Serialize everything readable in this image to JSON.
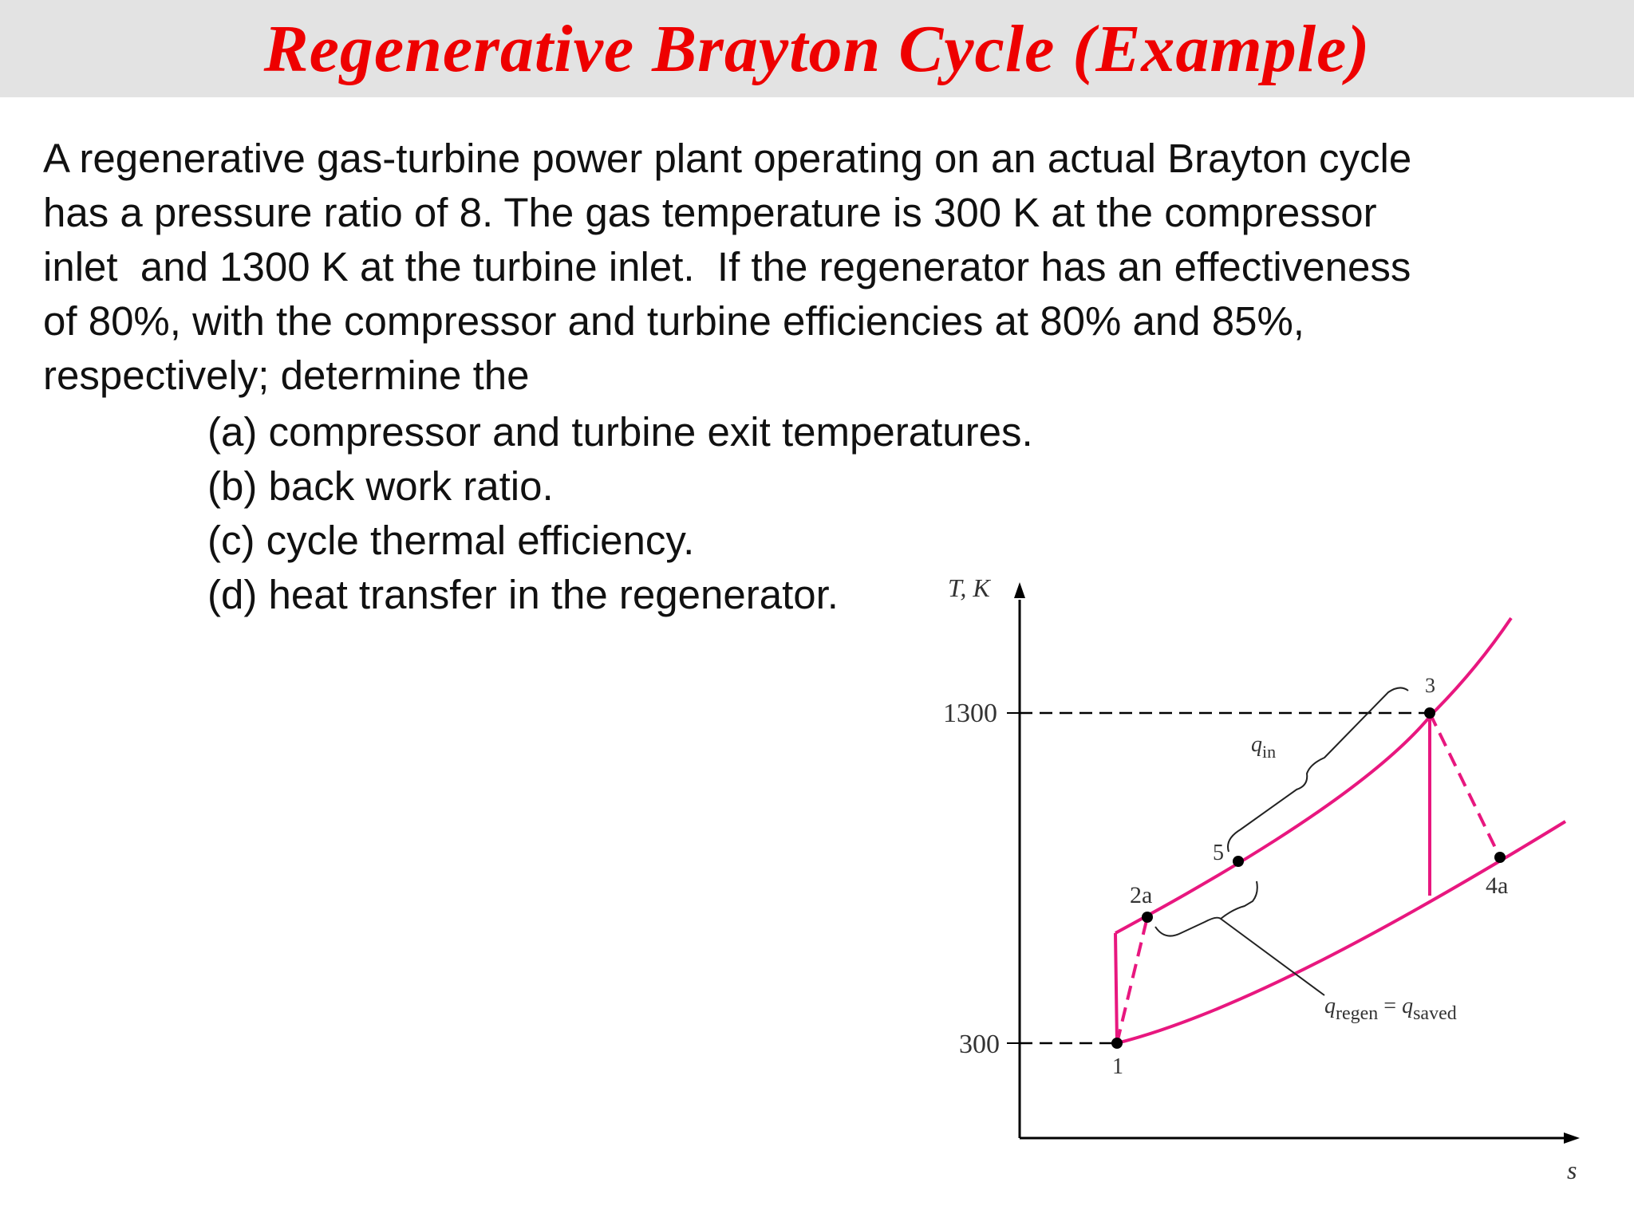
{
  "title": "Regenerative Brayton Cycle (Example)",
  "problem_lines": [
    "A regenerative gas-turbine power plant operating on an actual Brayton cycle",
    "has a pressure ratio of 8. The gas temperature is 300 K at the compressor",
    "inlet  and 1300 K at the turbine inlet.  If the regenerator has an effectiveness",
    "of 80%, with the compressor and turbine efficiencies at 80% and 85%,",
    "respectively; determine the"
  ],
  "questions": [
    "(a) compressor and turbine exit temperatures.",
    "(b) back work ratio.",
    "(c) cycle thermal efficiency.",
    "(d) heat transfer in the regenerator."
  ],
  "diagram": {
    "y_axis_label": "T, K",
    "x_axis_label": "s",
    "y_ticks": [
      "1300",
      "300"
    ],
    "state_labels": {
      "s1": "1",
      "s2a": "2a",
      "s3": "3",
      "s4a": "4a",
      "s5": "5"
    },
    "q_in_label": "q",
    "q_in_sub": "in",
    "q_regen_label": "q",
    "q_regen_sub": "regen",
    "q_equals": " = ",
    "q_saved_label": "q",
    "q_saved_sub": "saved",
    "curve_color": "#e8177f"
  }
}
